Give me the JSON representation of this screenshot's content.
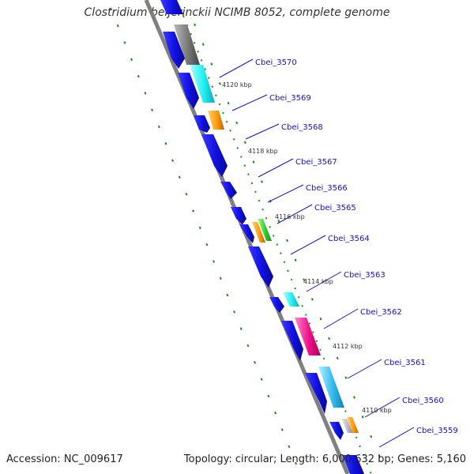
{
  "title": "Clostridium beijerinckii NCIMB 8052, complete genome",
  "footer": {
    "accession": "Accession: NC_009617",
    "topology": "Topology: circular; Length: 6,000,632 bp; Genes: 5,160"
  },
  "colors": {
    "backbone": "#808080",
    "cds": "#1a0ff0",
    "dots": "#1f8a1f",
    "label": "#1a0fbf"
  },
  "gene_labels": [
    "Cbei_3570",
    "Cbei_3569",
    "Cbei_3568",
    "Cbei_3567",
    "Cbei_3566",
    "Cbei_3565",
    "Cbei_3564",
    "Cbei_3563",
    "Cbei_3562",
    "Cbei_3561",
    "Cbei_3560",
    "Cbei_3559"
  ],
  "tick_labels": [
    "4120 kbp",
    "4118 kbp",
    "4116 kbp",
    "4114 kbp",
    "4112 kbp",
    "4110 kbp"
  ]
}
